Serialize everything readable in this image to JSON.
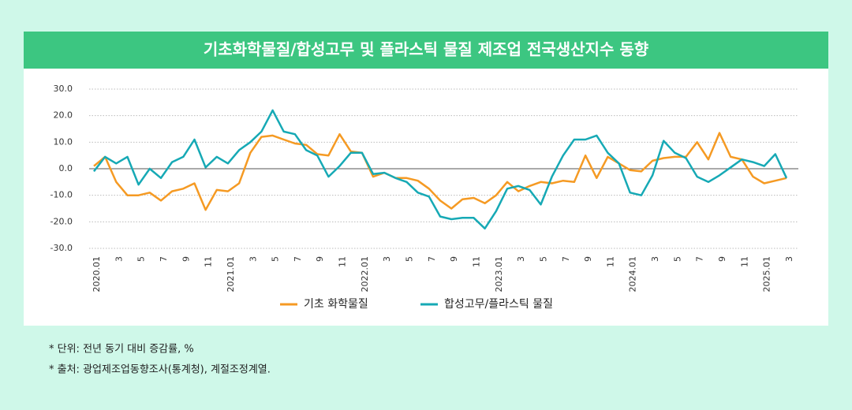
{
  "chart_data": {
    "type": "line",
    "title": "기초화학물질/합성고무 및 플라스틱 물질 제조업 전국생산지수 동향",
    "categories": [
      "2020.01",
      null,
      "3",
      null,
      "5",
      null,
      "7",
      null,
      "9",
      null,
      "11",
      null,
      "2021.01",
      null,
      "3",
      null,
      "5",
      null,
      "7",
      null,
      "9",
      null,
      "11",
      null,
      "2022.01",
      null,
      "3",
      null,
      "5",
      null,
      "7",
      null,
      "9",
      null,
      "11",
      null,
      "2023.01",
      null,
      "3",
      null,
      "5",
      null,
      "7",
      null,
      "9",
      null,
      "11",
      null,
      "2024.01",
      null,
      "3",
      null,
      "5",
      null,
      "7",
      null,
      "9",
      null,
      "11",
      null,
      "2025.01",
      null,
      "3"
    ],
    "series": [
      {
        "name": "기초 화학물질",
        "color": "#f59a23",
        "values": [
          1,
          4.5,
          -5,
          -10,
          -10,
          -9,
          -12,
          -8.5,
          -7.5,
          -5.5,
          -15.5,
          -8,
          -8.5,
          -5.5,
          6,
          12,
          12.5,
          11,
          9.5,
          9,
          5.5,
          5,
          13,
          6.5,
          6,
          -3,
          -1.5,
          -3.5,
          -3.5,
          -4.5,
          -7.5,
          -12,
          -15,
          -11.5,
          -11,
          -13,
          -10,
          -5,
          -8.5,
          -6.5,
          -5,
          -5.5,
          -4.5,
          -5,
          5,
          -3.5,
          4.5,
          2,
          -0.5,
          -1,
          3,
          4,
          4.5,
          4.5,
          10,
          3.5,
          13.5,
          4.5,
          3.5,
          -3,
          -5.5,
          -4.5,
          -3.5
        ]
      },
      {
        "name": "합성고무/플라스틱 물질",
        "color": "#16a9b5",
        "values": [
          -1,
          4.5,
          2,
          4.5,
          -6,
          0,
          -3.5,
          2.5,
          4.5,
          11,
          0.5,
          4.5,
          2,
          7,
          10,
          14,
          22,
          14,
          13,
          7,
          5,
          -3,
          1,
          6,
          6,
          -2,
          -1.5,
          -3.5,
          -5,
          -9,
          -10.5,
          -18,
          -19,
          -18.5,
          -18.5,
          -22.5,
          -16,
          -7.5,
          -6.5,
          -8,
          -13.5,
          -3,
          5,
          11,
          11,
          12.5,
          6,
          2,
          -9,
          -10,
          -2.5,
          10.5,
          6,
          4,
          -3,
          -5,
          -2.5,
          0.5,
          3.5,
          2.5,
          1,
          5.5,
          -3.5
        ]
      }
    ],
    "ylim": [
      -30,
      30
    ],
    "yticks": [
      {
        "value": 30,
        "label": "30.0"
      },
      {
        "value": 20,
        "label": "20.0"
      },
      {
        "value": 10,
        "label": "10.0"
      },
      {
        "value": 0,
        "label": "0.0"
      },
      {
        "value": -10,
        "label": "-10.0"
      },
      {
        "value": -20,
        "label": "-20.0"
      },
      {
        "value": -30,
        "label": "-30.0"
      }
    ],
    "grid": true,
    "legend": "bottom"
  },
  "notes": [
    "* 단위: 전년 동기 대비 증감률, %",
    "* 출처: 광업제조업동향조사(통계청), 계절조정계열."
  ]
}
